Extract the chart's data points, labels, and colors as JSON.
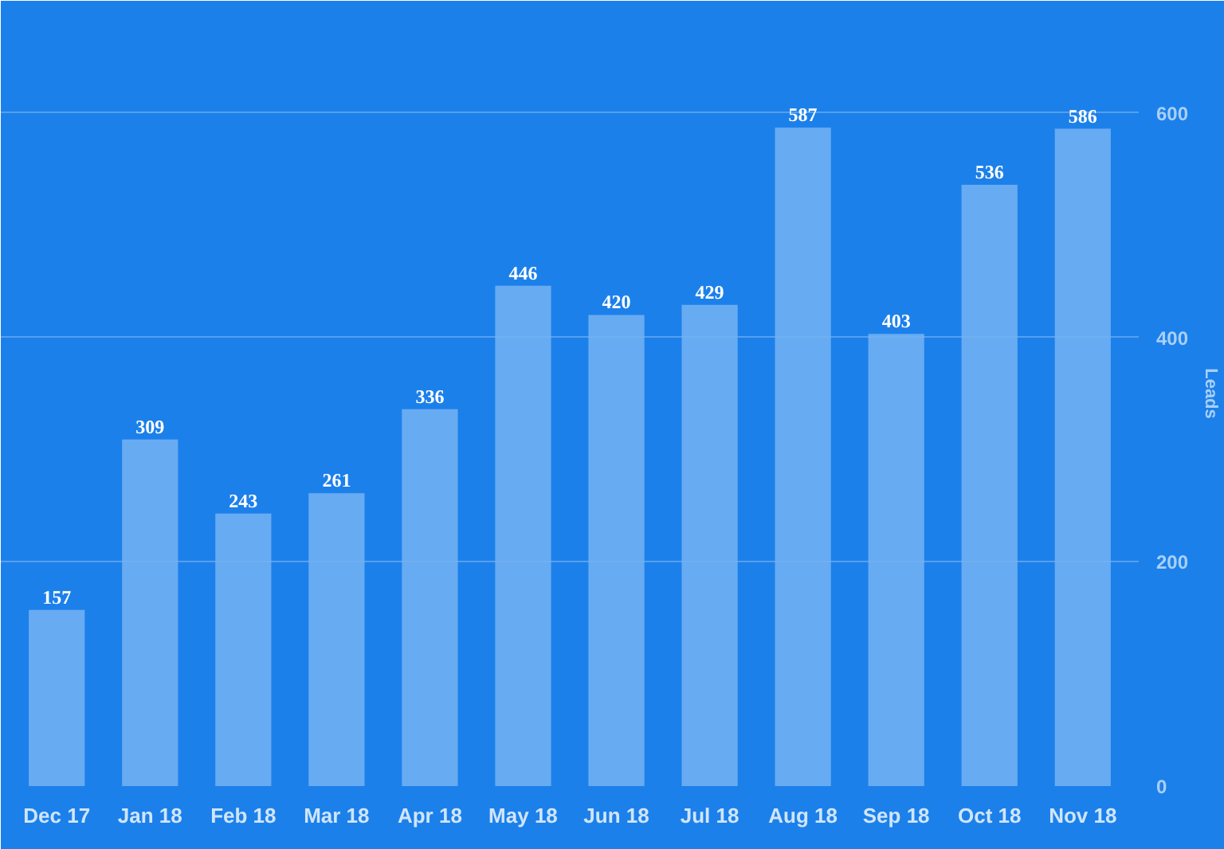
{
  "chart_data": {
    "type": "bar",
    "ylabel": "Leads",
    "categories": [
      "Dec 17",
      "Jan 18",
      "Feb 18",
      "Mar 18",
      "Apr 18",
      "May 18",
      "Jun 18",
      "Jul 18",
      "Aug 18",
      "Sep 18",
      "Oct 18",
      "Nov 18"
    ],
    "values": [
      157,
      309,
      243,
      261,
      336,
      446,
      420,
      429,
      587,
      403,
      536,
      586
    ],
    "color": "#74b3f3",
    "ylim": [
      0,
      700
    ],
    "yticks": [
      0,
      200,
      400,
      600
    ],
    "grid": "y",
    "data_labels": true
  }
}
